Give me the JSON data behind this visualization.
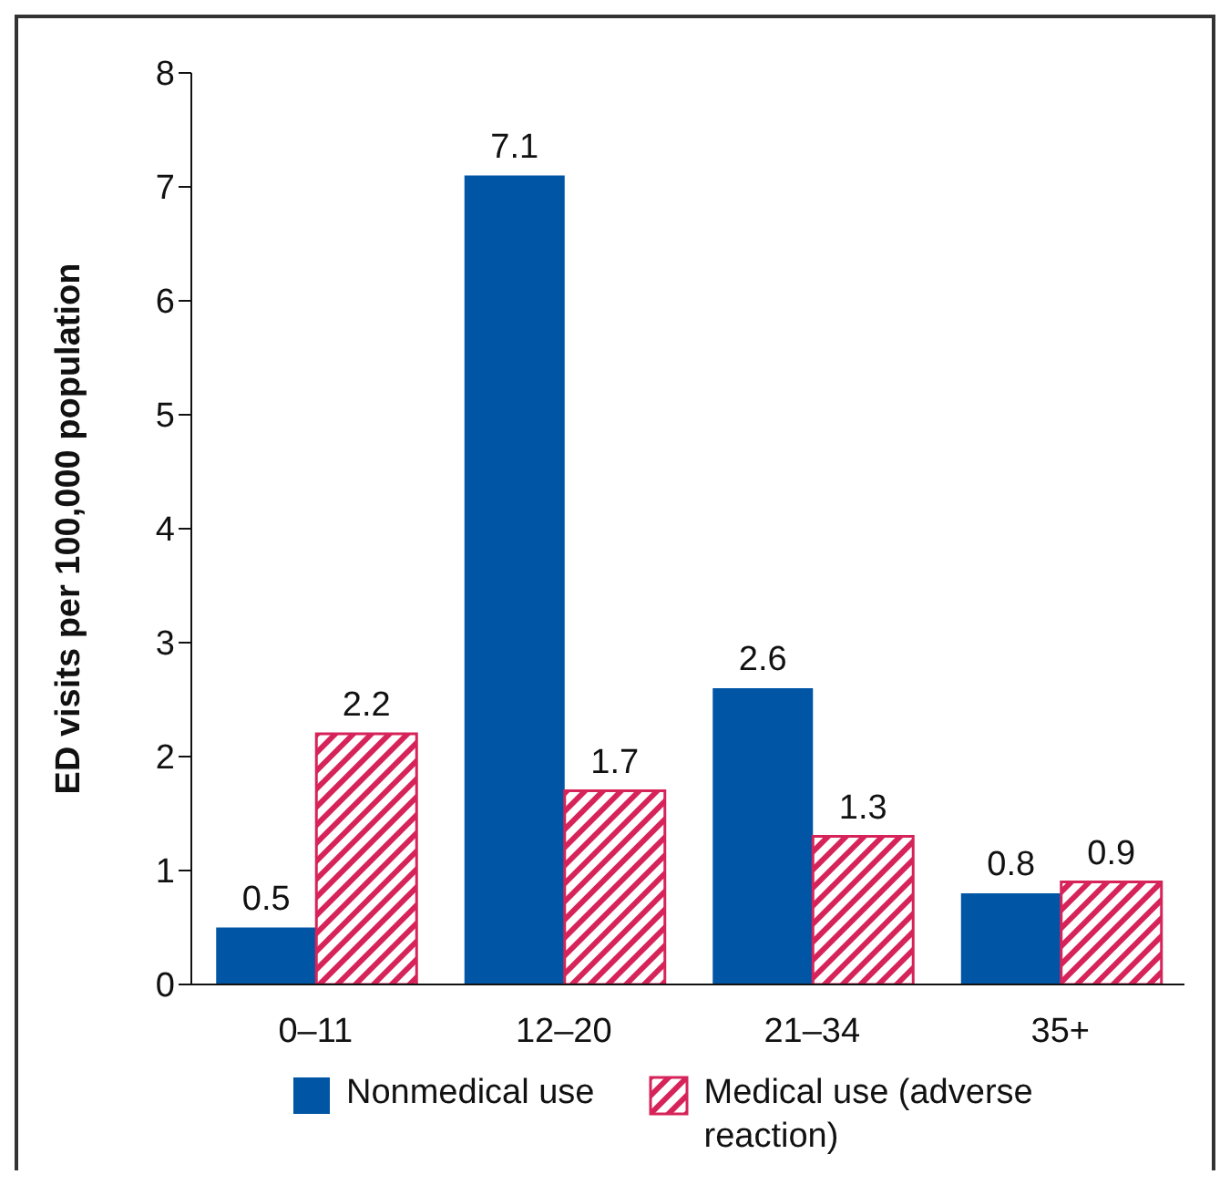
{
  "chart_data": {
    "type": "bar",
    "ylabel": "ED visits per 100,000 population",
    "categories": [
      "0–11",
      "12–20",
      "21–34",
      "35+"
    ],
    "series": [
      {
        "name": "Nonmedical use",
        "color": "#0055a5",
        "values": [
          0.5,
          7.1,
          2.6,
          0.8
        ]
      },
      {
        "name": "Medical use (adverse reaction)",
        "color": "#d6245a",
        "values": [
          2.2,
          1.7,
          1.3,
          0.9
        ]
      }
    ],
    "ylim": [
      0,
      8
    ],
    "yticks": [
      0,
      1,
      2,
      3,
      4,
      5,
      6,
      7,
      8
    ],
    "data_labels": true,
    "legend": "bottom",
    "grid": false
  }
}
